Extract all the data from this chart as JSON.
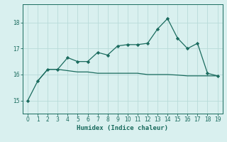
{
  "line1_x": [
    0,
    1,
    2,
    3,
    4,
    5,
    6,
    7,
    8,
    9,
    10,
    11,
    12,
    13,
    14,
    15,
    16,
    17,
    18,
    19
  ],
  "line1_y": [
    15.0,
    15.75,
    16.2,
    16.2,
    16.65,
    16.5,
    16.5,
    16.85,
    16.75,
    17.1,
    17.15,
    17.15,
    17.2,
    17.75,
    18.15,
    17.4,
    17.0,
    17.2,
    16.05,
    15.95
  ],
  "flat_x": [
    1,
    2,
    3,
    4,
    5,
    6,
    7,
    8,
    9,
    10,
    11,
    12,
    13,
    14,
    15,
    16,
    17,
    18,
    19
  ],
  "flat_y": [
    15.75,
    16.2,
    16.2,
    16.15,
    16.1,
    16.1,
    16.05,
    16.05,
    16.05,
    16.05,
    16.05,
    16.0,
    16.0,
    16.0,
    15.98,
    15.95,
    15.95,
    15.95,
    15.95
  ],
  "line_color": "#1a6b5e",
  "background_color": "#d9f0ef",
  "grid_color": "#b8dbd9",
  "xlabel": "Humidex (Indice chaleur)",
  "ylim": [
    14.5,
    18.7
  ],
  "xlim": [
    -0.5,
    19.5
  ],
  "yticks": [
    15,
    16,
    17,
    18
  ],
  "xticks": [
    0,
    1,
    2,
    3,
    4,
    5,
    6,
    7,
    8,
    9,
    10,
    11,
    12,
    13,
    14,
    15,
    16,
    17,
    18,
    19
  ]
}
